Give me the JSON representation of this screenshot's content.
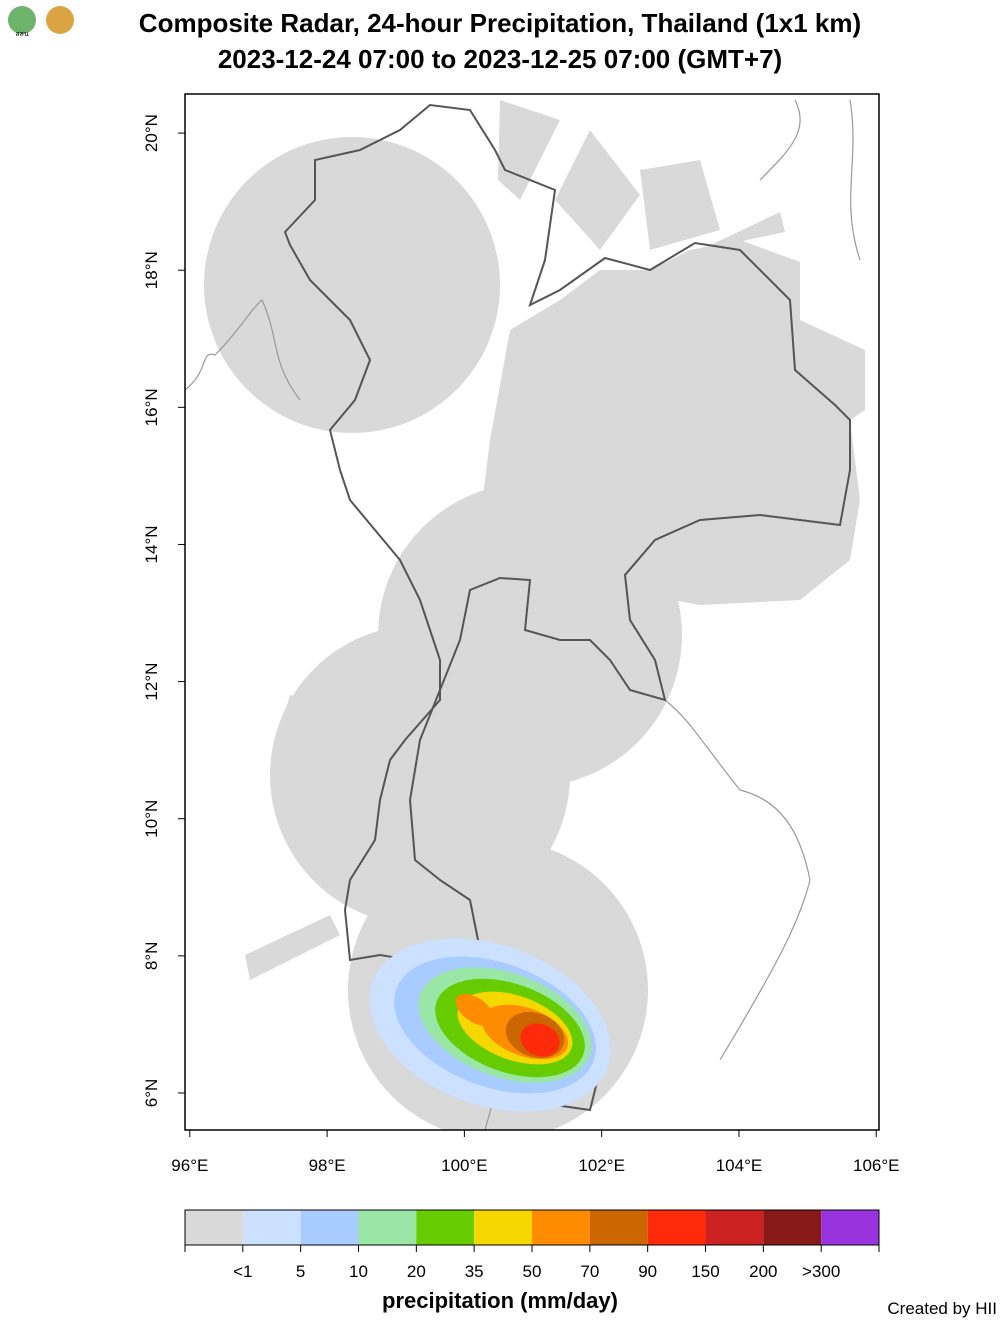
{
  "logo_text": "สสน",
  "title": [
    "Composite Radar, 24-hour Precipitation, Thailand (1x1 km)",
    "2023-12-24 07:00 to 2023-12-25 07:00 (GMT+7)"
  ],
  "map": {
    "xlim": [
      95.93,
      106.04
    ],
    "ylim": [
      5.46,
      20.57
    ],
    "xticks": [
      {
        "value": 96,
        "label": "96°E"
      },
      {
        "value": 98,
        "label": "98°E"
      },
      {
        "value": 100,
        "label": "100°E"
      },
      {
        "value": 102,
        "label": "102°E"
      },
      {
        "value": 104,
        "label": "104°E"
      },
      {
        "value": 106,
        "label": "106°E"
      }
    ],
    "yticks": [
      {
        "value": 6,
        "label": "6°N"
      },
      {
        "value": 8,
        "label": "8°N"
      },
      {
        "value": 10,
        "label": "10°N"
      },
      {
        "value": 12,
        "label": "12°N"
      },
      {
        "value": 14,
        "label": "14°N"
      },
      {
        "value": 16,
        "label": "16°N"
      },
      {
        "value": 18,
        "label": "18°N"
      },
      {
        "value": 20,
        "label": "20°N"
      }
    ]
  },
  "colorbar": {
    "colors": [
      "#d9d9d9",
      "#cce0ff",
      "#a8ccff",
      "#99e6a6",
      "#66cc00",
      "#f5d800",
      "#ff8c00",
      "#cc6600",
      "#ff2a0a",
      "#cc2222",
      "#881a1a",
      "#9933dd"
    ],
    "labels": [
      "<1",
      "5",
      "10",
      "20",
      "35",
      "50",
      "70",
      "90",
      "150",
      "200",
      ">300"
    ],
    "title": "precipitation (mm/day)"
  },
  "credit": "Created by HII"
}
